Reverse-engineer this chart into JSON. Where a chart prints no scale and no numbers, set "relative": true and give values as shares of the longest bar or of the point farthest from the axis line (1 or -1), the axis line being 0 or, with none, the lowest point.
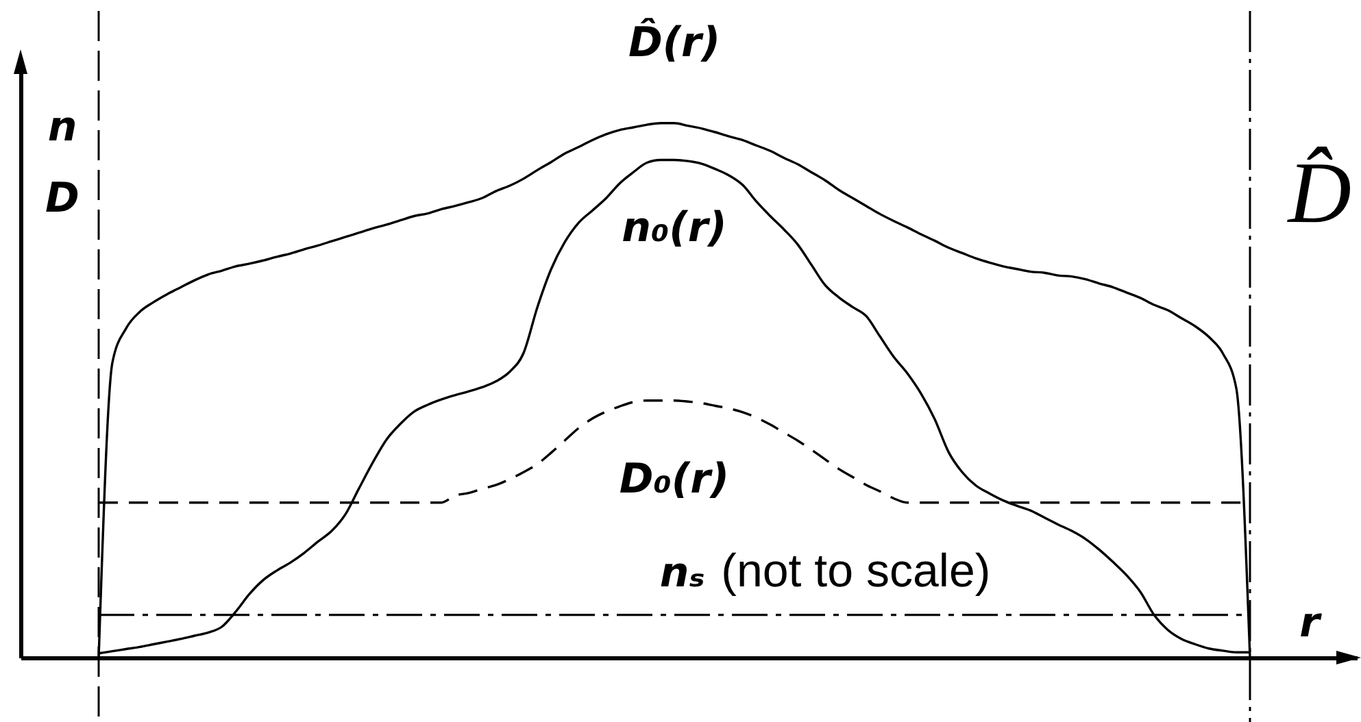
{
  "chart_data": {
    "type": "line",
    "relative": true,
    "xlabel": "r",
    "ylabel": "n D",
    "categories": [
      null,
      null,
      null,
      null,
      null,
      null,
      null,
      null,
      null,
      null,
      null,
      null,
      null,
      null,
      null,
      null,
      null,
      null,
      null,
      null,
      null,
      null,
      null,
      null,
      null,
      null,
      null,
      null,
      null,
      null,
      null,
      null,
      null,
      null,
      null,
      null,
      null,
      null,
      null,
      null,
      null,
      null,
      null,
      null,
      null,
      null,
      null,
      null,
      null,
      null,
      null,
      null,
      null,
      null,
      null,
      null,
      null,
      null,
      null,
      null,
      null,
      null,
      null,
      null,
      null,
      null,
      null,
      null,
      null,
      null,
      null,
      null,
      null,
      null,
      null,
      null,
      null,
      null,
      null,
      null,
      null,
      null,
      null,
      null,
      null
    ],
    "series": [
      {
        "name": "D̂(r)",
        "color": "#000000",
        "line_style": "solid",
        "values": [
          0,
          0.552,
          0.616,
          0.647,
          0.665,
          0.68,
          0.693,
          0.706,
          0.717,
          0.724,
          0.732,
          0.737,
          0.743,
          0.75,
          0.756,
          0.764,
          0.771,
          0.779,
          0.787,
          0.795,
          0.803,
          0.81,
          0.818,
          0.826,
          0.831,
          0.839,
          0.845,
          0.852,
          0.86,
          0.873,
          0.883,
          0.896,
          0.912,
          0.927,
          0.943,
          0.955,
          0.968,
          0.979,
          0.987,
          0.992,
          0.997,
          1,
          1,
          0.995,
          0.99,
          0.983,
          0.975,
          0.968,
          0.958,
          0.948,
          0.935,
          0.923,
          0.908,
          0.893,
          0.875,
          0.86,
          0.845,
          0.83,
          0.817,
          0.805,
          0.792,
          0.78,
          0.767,
          0.757,
          0.747,
          0.739,
          0.732,
          0.727,
          0.722,
          0.72,
          0.715,
          0.713,
          0.708,
          0.7,
          0.693,
          0.683,
          0.673,
          0.66,
          0.65,
          0.635,
          0.62,
          0.6,
          0.57,
          0.504,
          0
        ]
      },
      {
        "name": "n₀(r)",
        "color": "#000000",
        "line_style": "solid",
        "values": [
          0.008,
          0.012,
          0.016,
          0.02,
          0.025,
          0.03,
          0.035,
          0.041,
          0.047,
          0.058,
          0.086,
          0.119,
          0.145,
          0.163,
          0.178,
          0.196,
          0.217,
          0.237,
          0.268,
          0.317,
          0.365,
          0.408,
          0.437,
          0.46,
          0.473,
          0.483,
          0.491,
          0.498,
          0.506,
          0.517,
          0.535,
          0.57,
          0.655,
          0.726,
          0.777,
          0.813,
          0.836,
          0.859,
          0.887,
          0.908,
          0.926,
          0.931,
          0.931,
          0.929,
          0.924,
          0.914,
          0.902,
          0.884,
          0.853,
          0.826,
          0.801,
          0.773,
          0.735,
          0.697,
          0.674,
          0.656,
          0.639,
          0.601,
          0.563,
          0.532,
          0.494,
          0.446,
          0.385,
          0.347,
          0.322,
          0.307,
          0.294,
          0.284,
          0.275,
          0.262,
          0.249,
          0.237,
          0.222,
          0.202,
          0.179,
          0.154,
          0.123,
          0.08,
          0.052,
          0.035,
          0.025,
          0.017,
          0.013,
          0.01,
          0.01
        ]
      },
      {
        "name": "D₀(r)",
        "color": "#000000",
        "line_style": "dashed",
        "values": [
          0.29,
          0.29,
          0.29,
          0.29,
          0.29,
          0.29,
          0.29,
          0.29,
          0.29,
          0.29,
          0.29,
          0.29,
          0.29,
          0.29,
          0.29,
          0.29,
          0.29,
          0.29,
          0.29,
          0.29,
          0.29,
          0.29,
          0.29,
          0.29,
          0.29,
          0.29,
          0.303,
          0.308,
          0.316,
          0.323,
          0.334,
          0.347,
          0.362,
          0.383,
          0.406,
          0.429,
          0.447,
          0.46,
          0.47,
          0.478,
          0.481,
          0.481,
          0.481,
          0.479,
          0.476,
          0.471,
          0.466,
          0.459,
          0.449,
          0.436,
          0.421,
          0.406,
          0.389,
          0.371,
          0.353,
          0.338,
          0.323,
          0.311,
          0.298,
          0.29,
          0.29,
          0.29,
          0.29,
          0.29,
          0.29,
          0.29,
          0.29,
          0.29,
          0.29,
          0.29,
          0.29,
          0.29,
          0.29,
          0.29,
          0.29,
          0.29,
          0.29,
          0.29,
          0.29,
          0.29,
          0.29,
          0.29,
          0.29,
          0.29,
          0.29
        ]
      },
      {
        "name": "nₛ (not to scale)",
        "color": "#000000",
        "line_style": "dashdot",
        "values": [
          0.08,
          0.08,
          0.08,
          0.08,
          0.08,
          0.08,
          0.08,
          0.08,
          0.08,
          0.08,
          0.08,
          0.08,
          0.08,
          0.08,
          0.08,
          0.08,
          0.08,
          0.08,
          0.08,
          0.08,
          0.08,
          0.08,
          0.08,
          0.08,
          0.08,
          0.08,
          0.08,
          0.08,
          0.08,
          0.08,
          0.08,
          0.08,
          0.08,
          0.08,
          0.08,
          0.08,
          0.08,
          0.08,
          0.08,
          0.08,
          0.08,
          0.08,
          0.08,
          0.08,
          0.08,
          0.08,
          0.08,
          0.08,
          0.08,
          0.08,
          0.08,
          0.08,
          0.08,
          0.08,
          0.08,
          0.08,
          0.08,
          0.08,
          0.08,
          0.08,
          0.08,
          0.08,
          0.08,
          0.08,
          0.08,
          0.08,
          0.08,
          0.08,
          0.08,
          0.08,
          0.08,
          0.08,
          0.08,
          0.08,
          0.08,
          0.08,
          0.08,
          0.08,
          0.08,
          0.08,
          0.08,
          0.08,
          0.08,
          0.08,
          0.08
        ]
      }
    ],
    "annotations": [
      "D̂"
    ]
  }
}
